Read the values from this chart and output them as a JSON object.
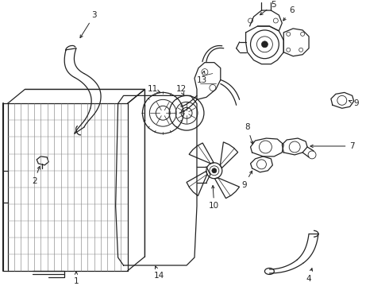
{
  "bg_color": "#ffffff",
  "line_color": "#222222",
  "figsize": [
    4.9,
    3.6
  ],
  "dpi": 100,
  "label_fontsize": 7.5,
  "lw": 0.9
}
